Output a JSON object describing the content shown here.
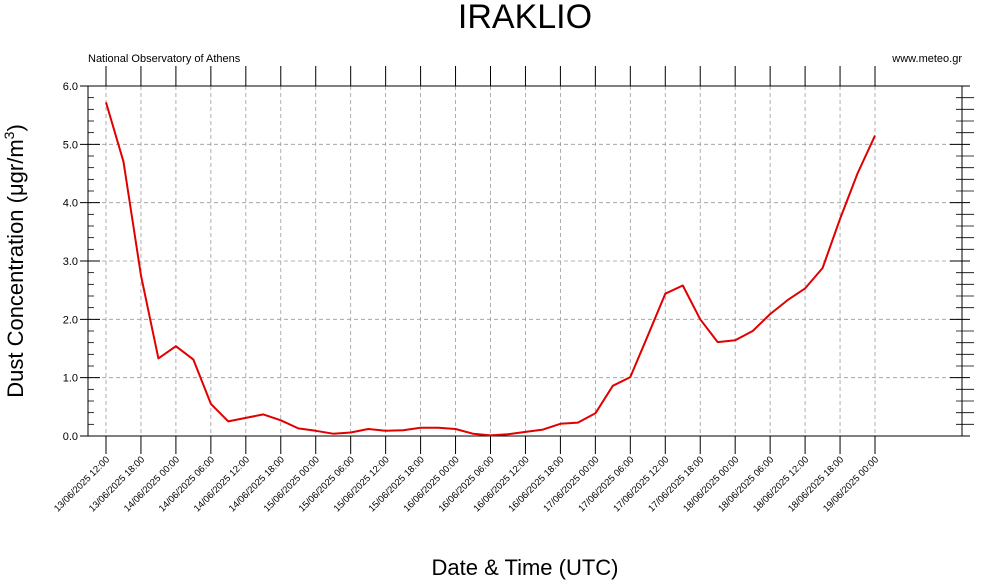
{
  "chart_data": {
    "type": "line",
    "title": "IRAKLIO",
    "subtitle_left": "National Observatory of Athens",
    "subtitle_right": "www.meteo.gr",
    "ylabel_main": "Dust Concentration (μgr/m",
    "ylabel_sup": "3",
    "ylabel_close": ")",
    "xlabel": "Date & Time (UTC)",
    "ylim": [
      0,
      6
    ],
    "y_ticks": [
      "0.0",
      "1.0",
      "2.0",
      "3.0",
      "4.0",
      "5.0",
      "6.0"
    ],
    "x_tick_labels": [
      "13/06/2025 12:00",
      "13/06/2025 18:00",
      "14/06/2025 00:00",
      "14/06/2025 06:00",
      "14/06/2025 12:00",
      "14/06/2025 18:00",
      "15/06/2025 00:00",
      "15/06/2025 06:00",
      "15/06/2025 12:00",
      "15/06/2025 18:00",
      "16/06/2025 00:00",
      "16/06/2025 06:00",
      "16/06/2025 12:00",
      "16/06/2025 18:00",
      "17/06/2025 00:00",
      "17/06/2025 06:00",
      "17/06/2025 12:00",
      "17/06/2025 18:00",
      "18/06/2025 00:00",
      "18/06/2025 06:00",
      "18/06/2025 12:00",
      "18/06/2025 18:00",
      "19/06/2025 00:00"
    ],
    "x_interval_hours": 3,
    "grid": true,
    "line_color": "#e00000",
    "series": [
      {
        "values": [
          5.72,
          4.7,
          2.75,
          1.33,
          1.54,
          1.31,
          0.55,
          0.25,
          0.31,
          0.37,
          0.27,
          0.13,
          0.09,
          0.04,
          0.06,
          0.12,
          0.09,
          0.1,
          0.14,
          0.14,
          0.12,
          0.04,
          0.01,
          0.03,
          0.07,
          0.11,
          0.21,
          0.23,
          0.39,
          0.86,
          1.01,
          1.72,
          2.44,
          2.58,
          2.0,
          1.61,
          1.64,
          1.8,
          2.09,
          2.33,
          2.53,
          2.88,
          3.72,
          4.5,
          5.15
        ]
      }
    ]
  }
}
